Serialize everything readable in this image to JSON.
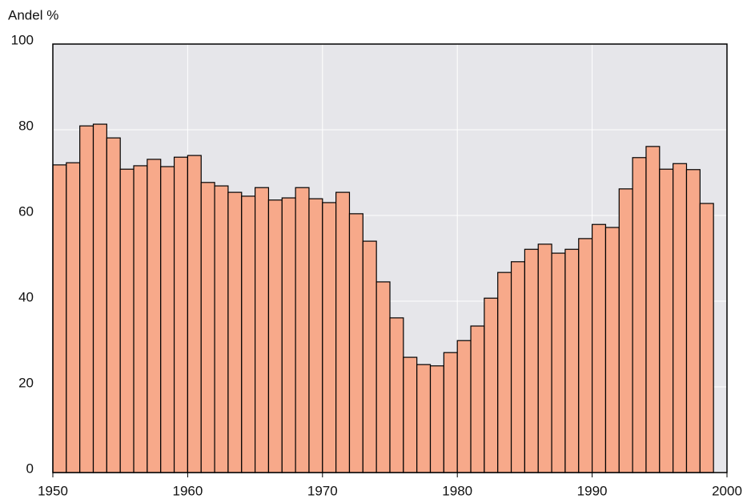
{
  "chart_data": {
    "type": "bar",
    "y_label": "Andel %",
    "x": [
      1950,
      1951,
      1952,
      1953,
      1954,
      1955,
      1956,
      1957,
      1958,
      1959,
      1960,
      1961,
      1962,
      1963,
      1964,
      1965,
      1966,
      1967,
      1968,
      1969,
      1970,
      1971,
      1972,
      1973,
      1974,
      1975,
      1976,
      1977,
      1978,
      1979,
      1980,
      1981,
      1982,
      1983,
      1984,
      1985,
      1986,
      1987,
      1988,
      1989,
      1990,
      1991,
      1992,
      1993,
      1994,
      1995,
      1996,
      1997,
      1998
    ],
    "values": [
      71.8,
      72.3,
      80.9,
      81.3,
      78.1,
      70.8,
      71.6,
      73.1,
      71.4,
      73.6,
      74.0,
      67.7,
      66.9,
      65.4,
      64.5,
      66.5,
      63.6,
      64.1,
      66.5,
      63.9,
      63.0,
      65.4,
      60.4,
      54.0,
      44.5,
      36.1,
      26.9,
      25.2,
      24.9,
      28.0,
      30.8,
      34.2,
      40.7,
      46.7,
      49.2,
      52.1,
      53.3,
      51.2,
      52.1,
      54.6,
      57.9,
      57.2,
      66.2,
      73.5,
      76.1,
      70.8,
      72.1,
      70.7,
      62.8
    ],
    "color": "#f7a98a",
    "xlim": [
      1950,
      2000
    ],
    "xticks": [
      1950,
      1960,
      1970,
      1980,
      1990,
      2000
    ],
    "ylim": [
      0,
      100
    ],
    "yticks": [
      0,
      20,
      40,
      60,
      80,
      100
    ],
    "grid": true
  }
}
